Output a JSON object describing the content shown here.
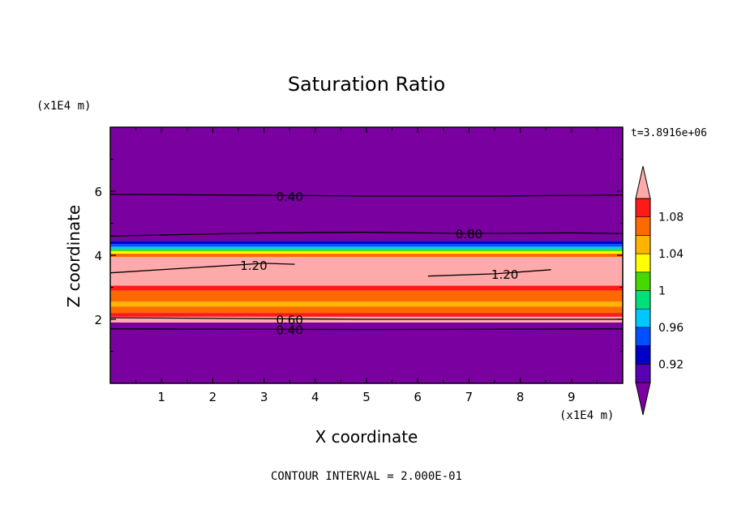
{
  "chart_data": {
    "type": "heatmap",
    "title": "Saturation Ratio",
    "xlabel": "X coordinate",
    "ylabel": "Z coordinate",
    "x_units": "(x1E4 m)",
    "y_units": "(x1E4 m)",
    "time_label": "t=3.8916e+06",
    "footer": "CONTOUR INTERVAL = 2.000E-01",
    "xlim": [
      0,
      10
    ],
    "ylim": [
      0,
      8
    ],
    "x_ticks": [
      "1",
      "2",
      "3",
      "4",
      "5",
      "6",
      "7",
      "8",
      "9"
    ],
    "y_ticks": [
      "2",
      "4",
      "6"
    ],
    "colorbar": {
      "levels": [
        0.9,
        0.92,
        0.94,
        0.96,
        0.98,
        1.0,
        1.02,
        1.04,
        1.06,
        1.08,
        1.1
      ],
      "tick_labels": [
        "0.92",
        "0.96",
        "1",
        "1.04",
        "1.08"
      ],
      "colors": [
        "#7b00a0",
        "#5a00b4",
        "#0000c8",
        "#0050ff",
        "#00c8ff",
        "#00e07a",
        "#46d800",
        "#ffff00",
        "#ffb400",
        "#ff6a00",
        "#ff1a1a",
        "#ffaaaa"
      ]
    },
    "bands": [
      {
        "z0": 0.0,
        "z1": 1.9,
        "color": "#7b00a0"
      },
      {
        "z0": 1.9,
        "z1": 2.08,
        "color": "#ffaaaa"
      },
      {
        "z0": 2.08,
        "z1": 2.2,
        "color": "#ff1a1a"
      },
      {
        "z0": 2.2,
        "z1": 2.4,
        "color": "#ff6a00"
      },
      {
        "z0": 2.4,
        "z1": 2.55,
        "color": "#ffb400"
      },
      {
        "z0": 2.55,
        "z1": 2.9,
        "color": "#ff6a00"
      },
      {
        "z0": 2.9,
        "z1": 3.05,
        "color": "#ff1a1a"
      },
      {
        "z0": 3.05,
        "z1": 3.95,
        "color": "#ffaaaa"
      },
      {
        "z0": 3.95,
        "z1": 4.05,
        "color": "#ff6a00"
      },
      {
        "z0": 4.05,
        "z1": 4.13,
        "color": "#ffff00"
      },
      {
        "z0": 4.13,
        "z1": 4.2,
        "color": "#46d800"
      },
      {
        "z0": 4.2,
        "z1": 4.27,
        "color": "#00c8ff"
      },
      {
        "z0": 4.27,
        "z1": 4.35,
        "color": "#0050ff"
      },
      {
        "z0": 4.35,
        "z1": 4.45,
        "color": "#0000c8"
      },
      {
        "z0": 4.45,
        "z1": 8.0,
        "color": "#7b00a0"
      }
    ],
    "contours": [
      {
        "level": 0.4,
        "label": "0.40",
        "points": [
          [
            0,
            5.9
          ],
          [
            2.5,
            5.88
          ],
          [
            5,
            5.85
          ],
          [
            7.5,
            5.85
          ],
          [
            10,
            5.88
          ]
        ],
        "label_at": [
          3.5,
          5.85
        ]
      },
      {
        "level": 0.8,
        "label": "0.80",
        "points": [
          [
            0,
            4.6
          ],
          [
            3,
            4.7
          ],
          [
            5,
            4.72
          ],
          [
            7,
            4.68
          ],
          [
            9,
            4.7
          ],
          [
            10,
            4.68
          ]
        ],
        "label_at": [
          7.0,
          4.68
        ]
      },
      {
        "level": 1.2,
        "label": "1.20",
        "points": [
          [
            0,
            3.45
          ],
          [
            2,
            3.65
          ],
          [
            3,
            3.75
          ],
          [
            3.6,
            3.72
          ]
        ],
        "label_at": [
          2.8,
          3.7
        ]
      },
      {
        "level": 1.2,
        "label": "1.20",
        "points": [
          [
            6.2,
            3.35
          ],
          [
            7.5,
            3.42
          ],
          [
            8.6,
            3.55
          ]
        ],
        "label_at": [
          7.7,
          3.42
        ]
      },
      {
        "level": 0.6,
        "label": "0.60",
        "points": [
          [
            0,
            2.05
          ],
          [
            5,
            2.0
          ],
          [
            10,
            2.0
          ]
        ],
        "label_at": [
          3.5,
          2.0
        ]
      },
      {
        "level": 0.4,
        "label": "0.40",
        "points": [
          [
            0,
            1.7
          ],
          [
            5,
            1.68
          ],
          [
            10,
            1.7
          ]
        ],
        "label_at": [
          3.5,
          1.68
        ]
      }
    ]
  }
}
